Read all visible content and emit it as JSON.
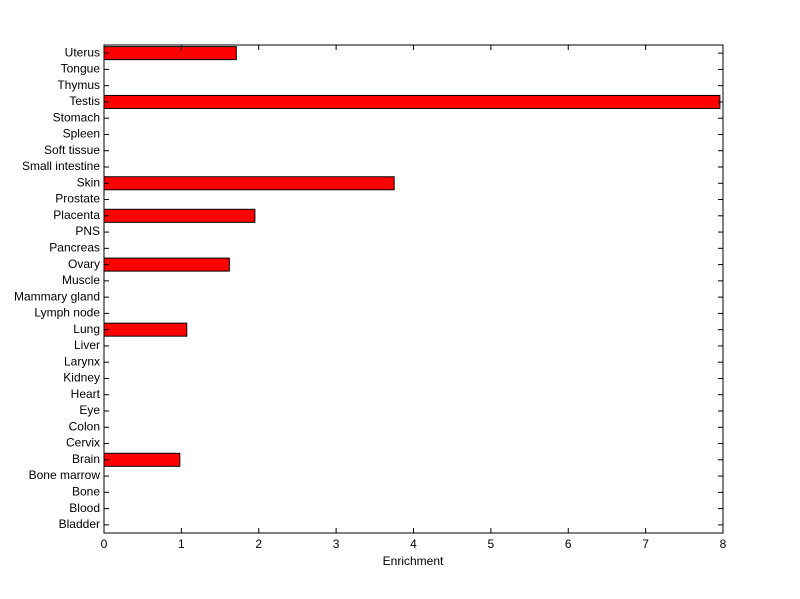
{
  "chart_data": {
    "type": "hbar",
    "xlabel": "Enrichment",
    "categories": [
      "Uterus",
      "Tongue",
      "Thymus",
      "Testis",
      "Stomach",
      "Spleen",
      "Soft tissue",
      "Small intestine",
      "Skin",
      "Prostate",
      "Placenta",
      "PNS",
      "Pancreas",
      "Ovary",
      "Muscle",
      "Mammary gland",
      "Lymph node",
      "Lung",
      "Liver",
      "Larynx",
      "Kidney",
      "Heart",
      "Eye",
      "Colon",
      "Cervix",
      "Brain",
      "Bone marrow",
      "Bone",
      "Blood",
      "Bladder"
    ],
    "values": [
      1.71,
      0,
      0,
      7.96,
      0,
      0,
      0,
      0,
      3.75,
      0,
      1.95,
      0,
      0,
      1.62,
      0,
      0,
      0,
      1.07,
      0,
      0,
      0,
      0,
      0,
      0,
      0,
      0.98,
      0,
      0,
      0,
      0
    ],
    "color": "#ff0000",
    "xlim": [
      0,
      8
    ],
    "xticks": [
      0,
      1,
      2,
      3,
      4,
      5,
      6,
      7,
      8
    ]
  }
}
